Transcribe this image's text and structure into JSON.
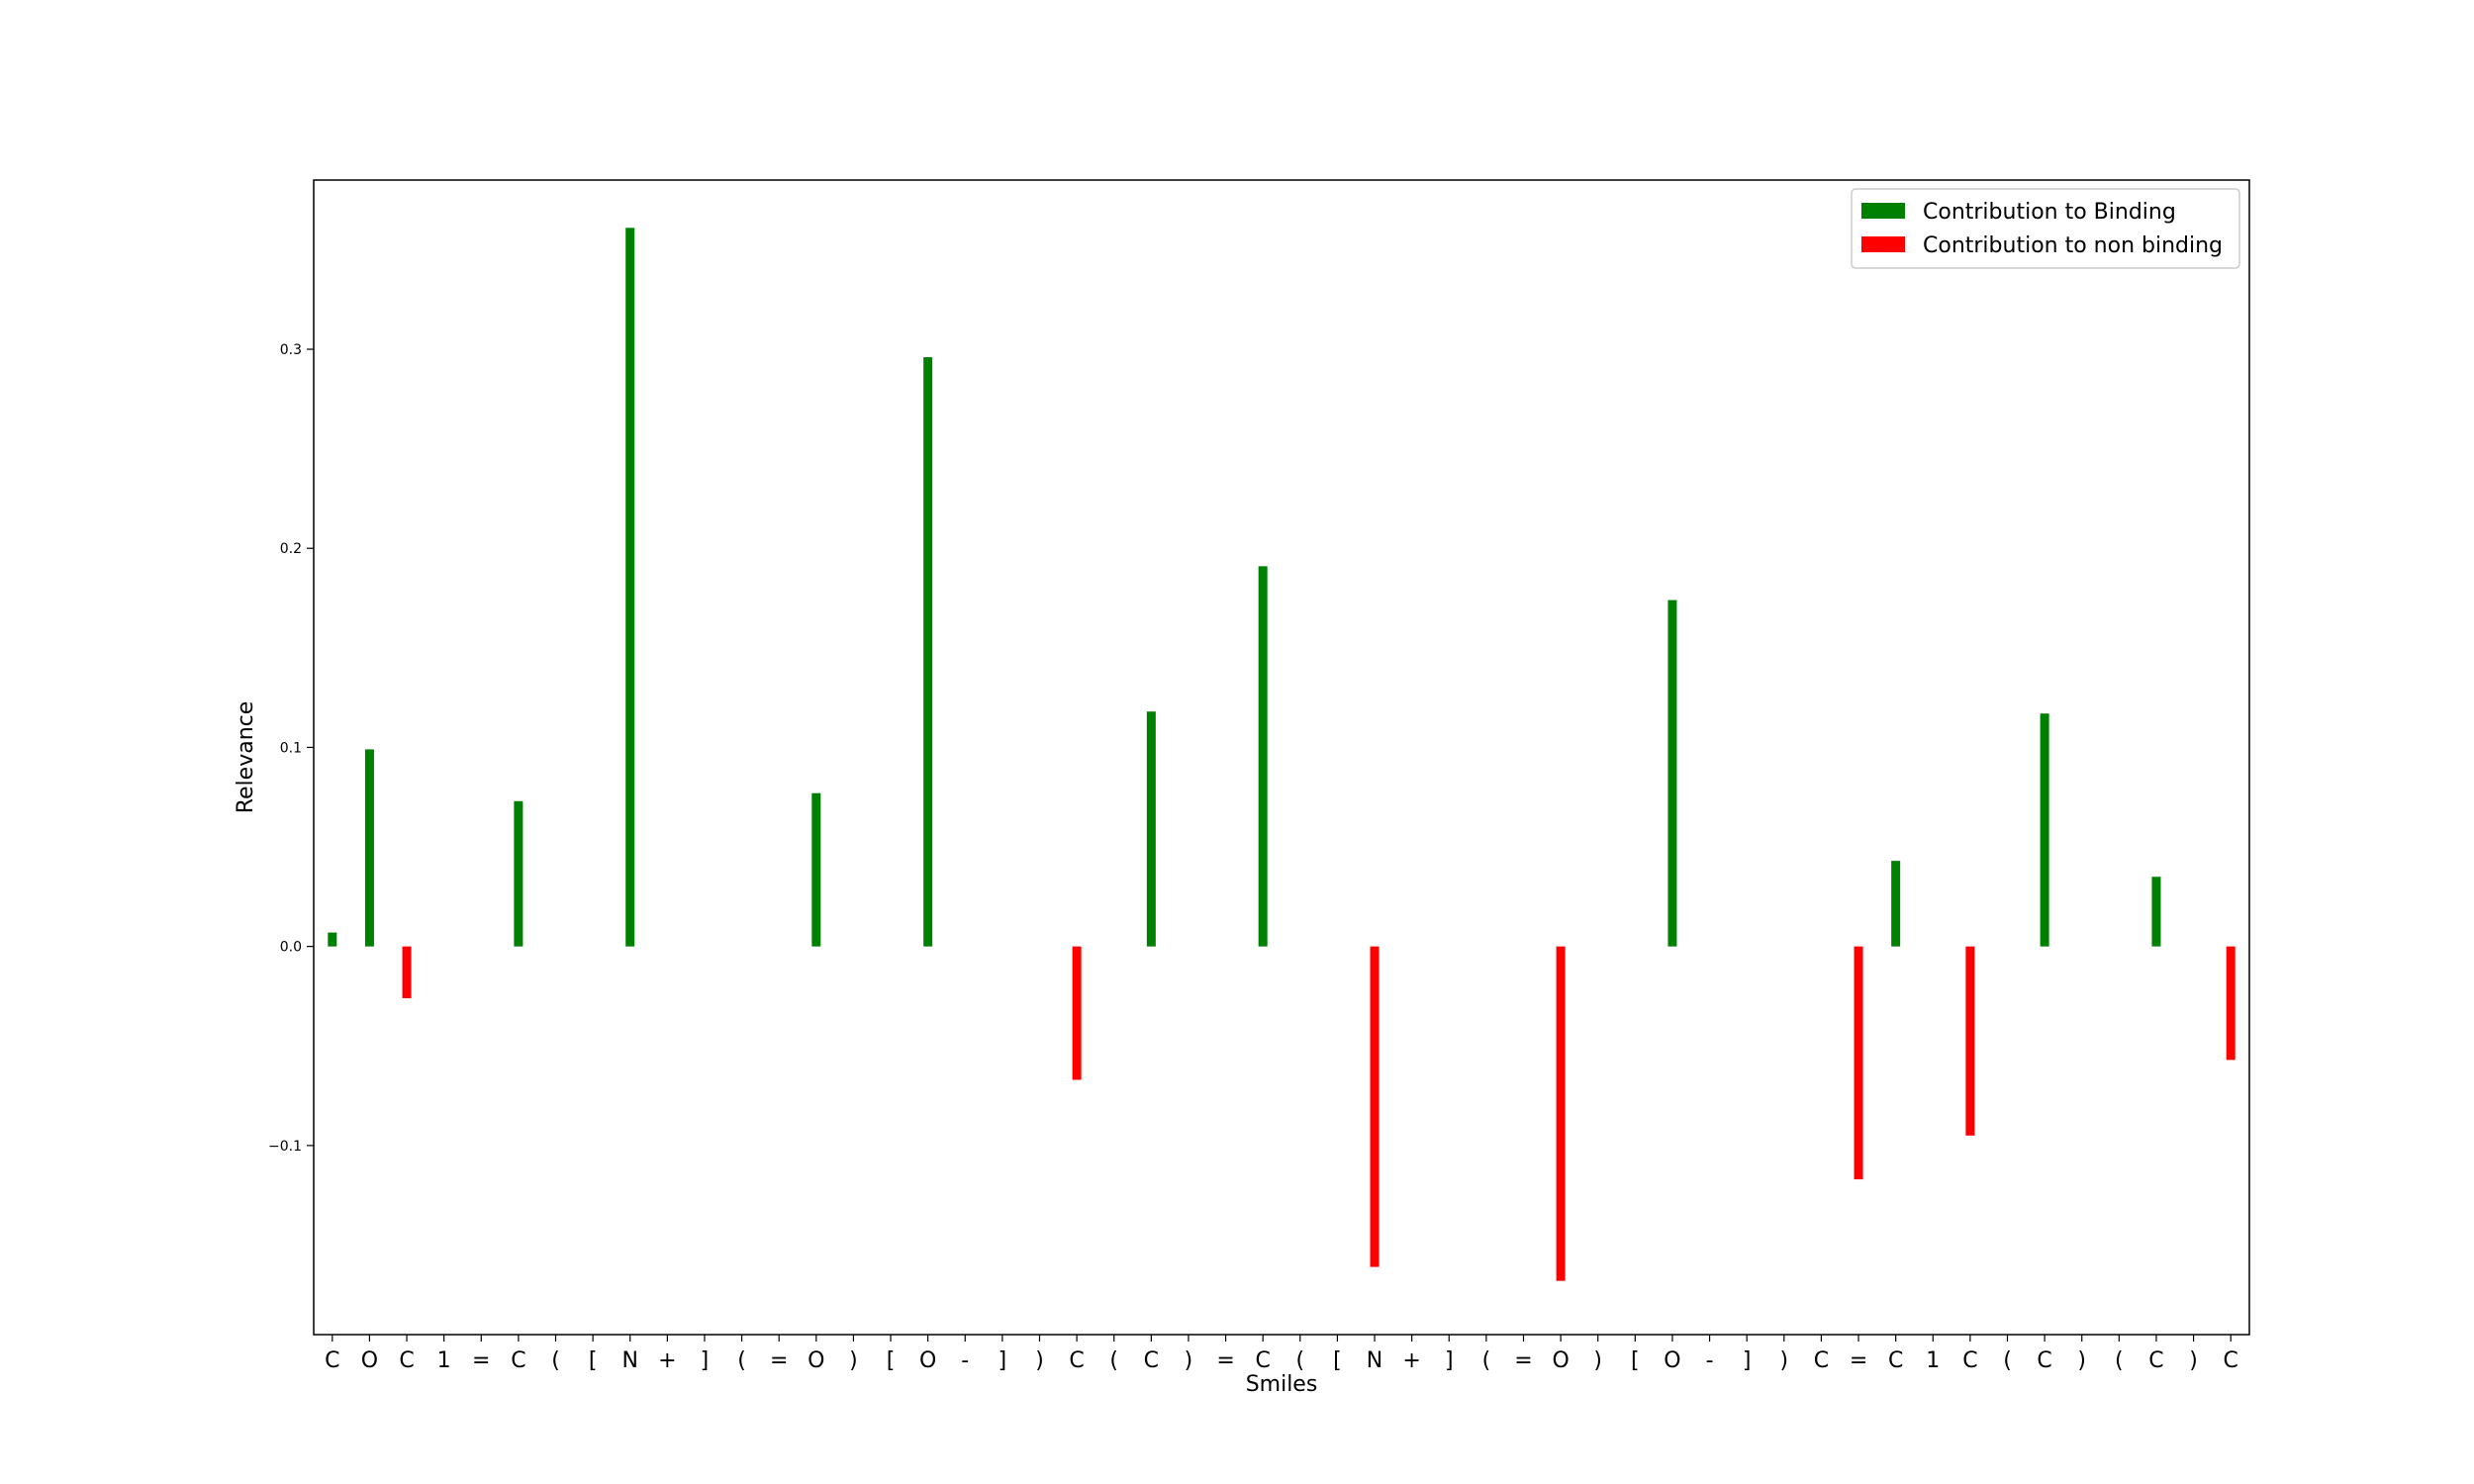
{
  "chart_data": {
    "type": "bar",
    "title": "",
    "xlabel": "Smiles",
    "ylabel": "Relevance",
    "ylim": [
      -0.195,
      0.385
    ],
    "yticks": [
      -0.1,
      0.0,
      0.1,
      0.2,
      0.3
    ],
    "ytick_labels": [
      "−0.1",
      "0.0",
      "0.1",
      "0.2",
      "0.3"
    ],
    "grid": false,
    "legend_position": "top-right",
    "colors": {
      "binding": "#008000",
      "non_binding": "#ff0000"
    },
    "legend": [
      {
        "label": "Contribution to Binding",
        "color": "#008000"
      },
      {
        "label": "Contribution to non binding",
        "color": "#ff0000"
      }
    ],
    "categories": [
      "C",
      "O",
      "C",
      "1",
      "=",
      "C",
      "(",
      "[",
      "N",
      "+",
      "]",
      "(",
      "=",
      "O",
      ")",
      "[",
      "O",
      "-",
      "]",
      ")",
      "C",
      "(",
      "C",
      ")",
      "=",
      "C",
      "(",
      "[",
      "N",
      "+",
      "]",
      "(",
      "=",
      "O",
      ")",
      "[",
      "O",
      "-",
      "]",
      ")",
      "C",
      "=",
      "C",
      "1",
      "C",
      "(",
      "C",
      ")",
      "(",
      "C",
      ")",
      "C"
    ],
    "series": [
      {
        "name": "Contribution to Binding",
        "color": "#008000",
        "points": [
          {
            "index": 0,
            "value": 0.007
          },
          {
            "index": 1,
            "value": 0.099
          },
          {
            "index": 5,
            "value": 0.073
          },
          {
            "index": 8,
            "value": 0.361
          },
          {
            "index": 13,
            "value": 0.077
          },
          {
            "index": 16,
            "value": 0.296
          },
          {
            "index": 22,
            "value": 0.118
          },
          {
            "index": 25,
            "value": 0.191
          },
          {
            "index": 36,
            "value": 0.174
          },
          {
            "index": 42,
            "value": 0.043
          },
          {
            "index": 46,
            "value": 0.117
          },
          {
            "index": 49,
            "value": 0.035
          }
        ]
      },
      {
        "name": "Contribution to non binding",
        "color": "#ff0000",
        "points": [
          {
            "index": 2,
            "value": -0.026
          },
          {
            "index": 20,
            "value": -0.067
          },
          {
            "index": 28,
            "value": -0.161
          },
          {
            "index": 33,
            "value": -0.168
          },
          {
            "index": 41,
            "value": -0.117
          },
          {
            "index": 44,
            "value": -0.095
          },
          {
            "index": 51,
            "value": -0.057
          }
        ]
      }
    ]
  }
}
